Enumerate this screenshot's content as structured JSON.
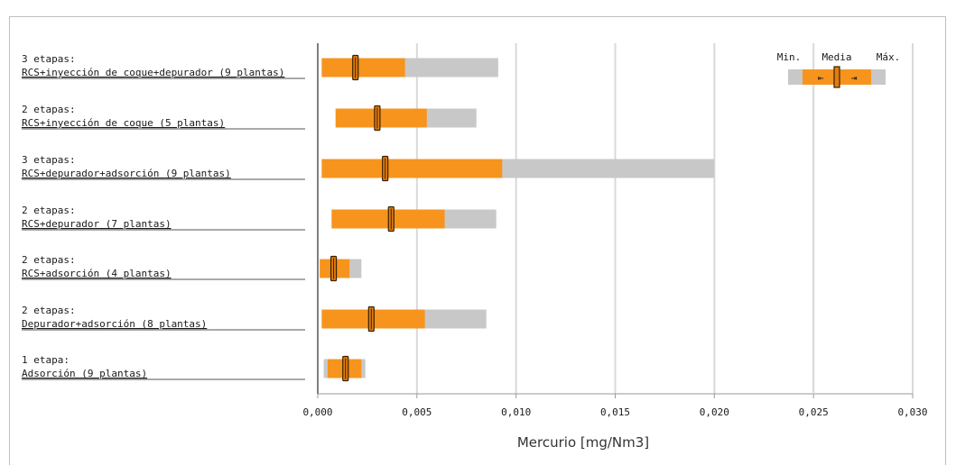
{
  "chart_data": {
    "type": "boxplot-range",
    "xlabel": "Mercurio [mg/Nm3]",
    "xlim": [
      0,
      0.03
    ],
    "xticks": [
      "0,000",
      "0,005",
      "0,010",
      "0,015",
      "0,020",
      "0,025",
      "0,030"
    ],
    "xtick_values": [
      0,
      0.005,
      0.01,
      0.015,
      0.02,
      0.025,
      0.03
    ],
    "grid": true,
    "colors": {
      "inner": "#f7941d",
      "outer": "#c8c8c8",
      "mean": "#e07d10",
      "grid": "#d9d9d9"
    },
    "legend": {
      "min_label": "Min.",
      "mean_label": "Media",
      "max_label": "Máx.",
      "placement": "top-right"
    },
    "categories": [
      {
        "line1": "3 etapas:",
        "line2": "RCS+inyección de coque+depurador (9 plantas)",
        "min": 0.0002,
        "inner_low": 0.0002,
        "mean": 0.0019,
        "inner_high": 0.0044,
        "max": 0.0091
      },
      {
        "line1": "2 etapas:",
        "line2": "RCS+inyección de coque (5 plantas)",
        "min": 0.0009,
        "inner_low": 0.0009,
        "mean": 0.003,
        "inner_high": 0.0055,
        "max": 0.008
      },
      {
        "line1": "3 etapas:",
        "line2": "RCS+depurador+adsorción (9 plantas)",
        "min": 0.0002,
        "inner_low": 0.0002,
        "mean": 0.0034,
        "inner_high": 0.0093,
        "max": 0.02
      },
      {
        "line1": "2 etapas:",
        "line2": "RCS+depurador (7 plantas)",
        "min": 0.0007,
        "inner_low": 0.0007,
        "mean": 0.0037,
        "inner_high": 0.0064,
        "max": 0.009
      },
      {
        "line1": "2 etapas:",
        "line2": "RCS+adsorción (4 plantas)",
        "min": 0.0001,
        "inner_low": 0.0001,
        "mean": 0.0008,
        "inner_high": 0.0016,
        "max": 0.0022
      },
      {
        "line1": "2 etapas:",
        "line2": "Depurador+adsorción (8 plantas)",
        "min": 0.0002,
        "inner_low": 0.0002,
        "mean": 0.0027,
        "inner_high": 0.0054,
        "max": 0.0085
      },
      {
        "line1": "1 etapa:",
        "line2": "Adsorción (9 plantas)",
        "min": 0.0003,
        "inner_low": 0.0005,
        "mean": 0.0014,
        "inner_high": 0.0022,
        "max": 0.0024
      }
    ]
  }
}
